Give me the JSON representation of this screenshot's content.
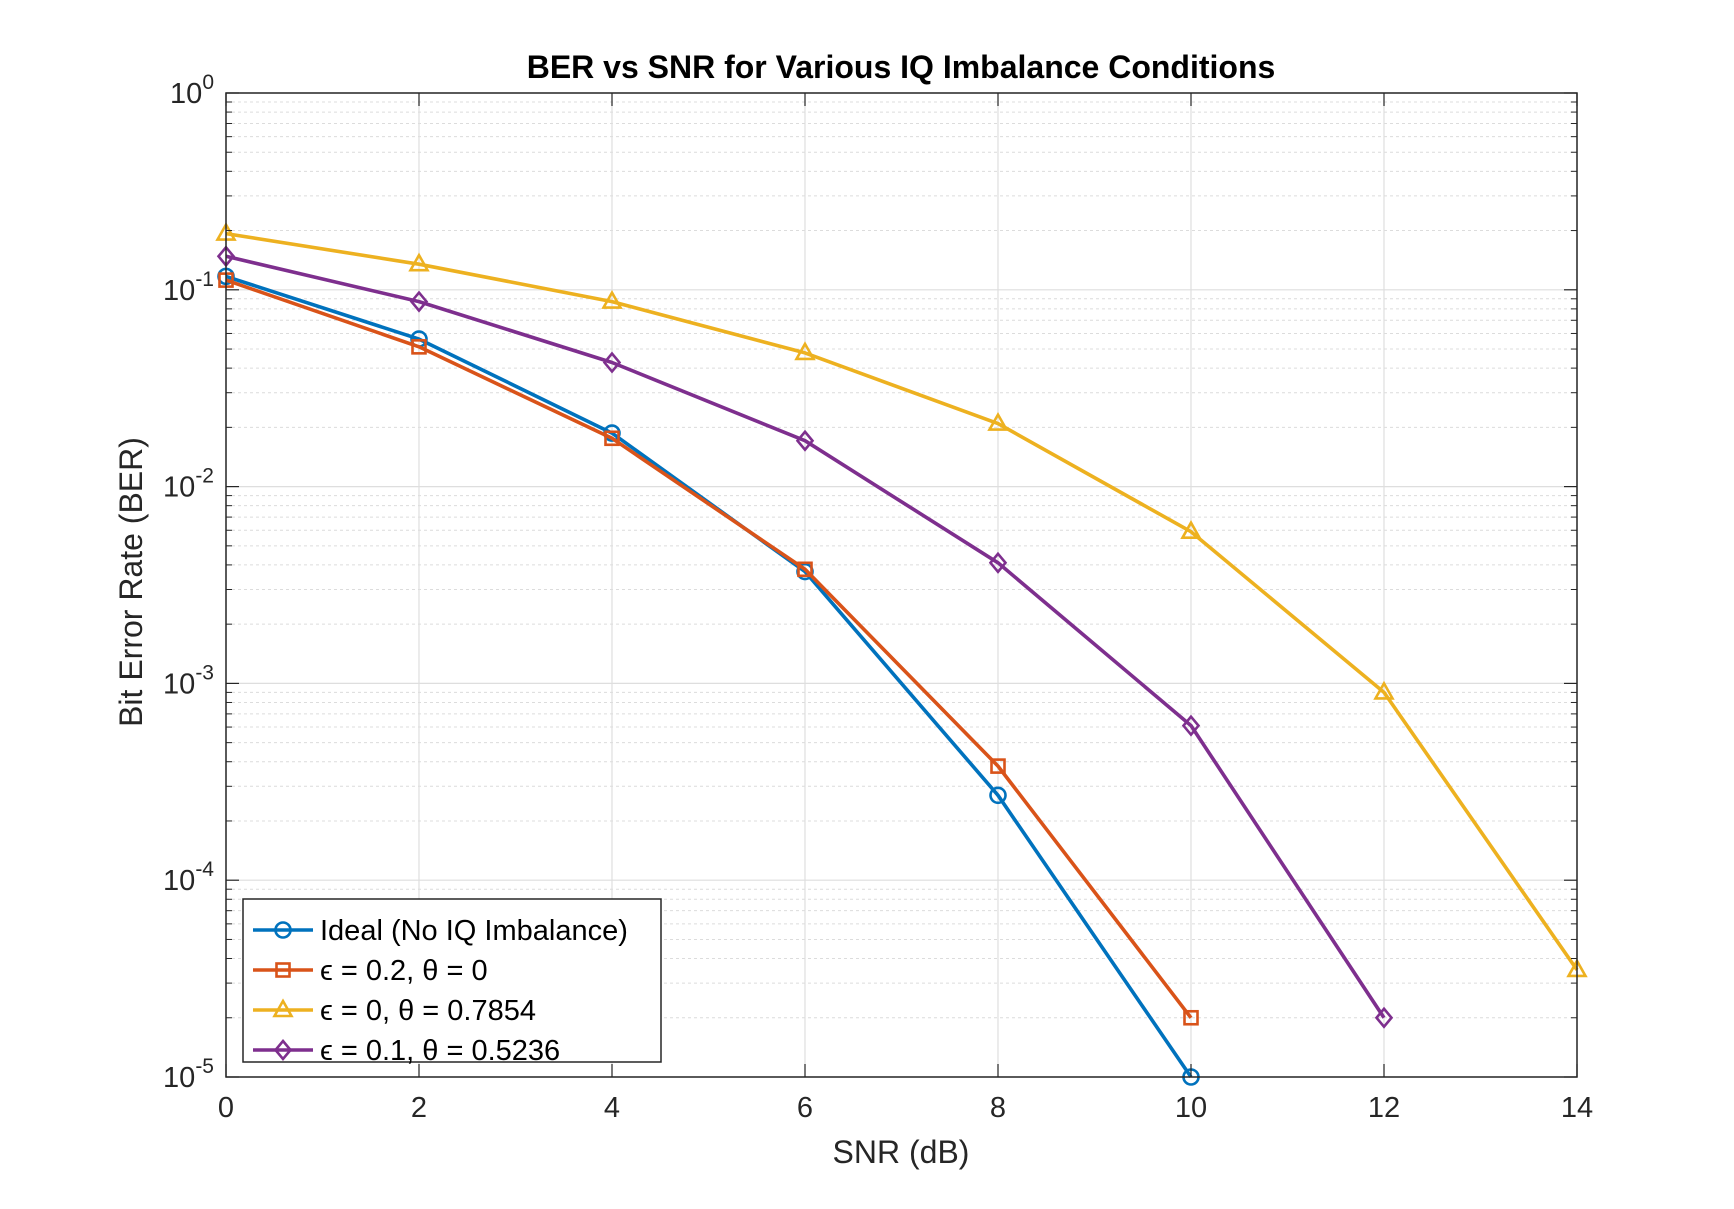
{
  "chart_data": {
    "type": "line",
    "title": "BER vs SNR for Various IQ Imbalance Conditions",
    "xlabel": "SNR (dB)",
    "ylabel": "Bit Error Rate (BER)",
    "xlim": [
      0,
      14
    ],
    "ylim": [
      1e-05,
      1
    ],
    "yscale": "log",
    "grid": true,
    "minor_grid": true,
    "legend_position": "bottom-left",
    "x_ticks": [
      0,
      2,
      4,
      6,
      8,
      10,
      12,
      14
    ],
    "x_tick_labels": [
      "0",
      "2",
      "4",
      "6",
      "8",
      "10",
      "12",
      "14"
    ],
    "y_ticks": [
      {
        "value": 1,
        "base": "10",
        "exp": "0"
      },
      {
        "value": 0.1,
        "base": "10",
        "exp": "-1"
      },
      {
        "value": 0.01,
        "base": "10",
        "exp": "-2"
      },
      {
        "value": 0.001,
        "base": "10",
        "exp": "-3"
      },
      {
        "value": 0.0001,
        "base": "10",
        "exp": "-4"
      },
      {
        "value": 1e-05,
        "base": "10",
        "exp": "-5"
      }
    ],
    "series": [
      {
        "name": "Ideal (No IQ Imbalance)",
        "color": "#0072BD",
        "marker": "circle",
        "x": [
          0,
          2,
          4,
          6,
          8,
          10
        ],
        "y": [
          0.117,
          0.0562,
          0.0187,
          0.0037,
          0.00027,
          1e-05
        ]
      },
      {
        "name": "ϵ = 0.2, θ = 0",
        "color": "#D95319",
        "marker": "square",
        "x": [
          0,
          2,
          4,
          6,
          8,
          10
        ],
        "y": [
          0.112,
          0.0513,
          0.0176,
          0.0038,
          0.00038,
          2e-05
        ]
      },
      {
        "name": "ϵ = 0, θ = 0.7854",
        "color": "#EDB120",
        "marker": "triangle",
        "x": [
          0,
          2,
          4,
          6,
          8,
          10,
          12,
          14
        ],
        "y": [
          0.193,
          0.135,
          0.0871,
          0.0478,
          0.0209,
          0.0059,
          0.0009,
          3.5e-05
        ]
      },
      {
        "name": "ϵ = 0.1, θ = 0.5236",
        "color": "#7E2F8E",
        "marker": "diamond",
        "x": [
          0,
          2,
          4,
          6,
          8,
          10,
          12
        ],
        "y": [
          0.148,
          0.0871,
          0.0427,
          0.0171,
          0.0041,
          0.00061,
          2e-05
        ]
      }
    ]
  }
}
